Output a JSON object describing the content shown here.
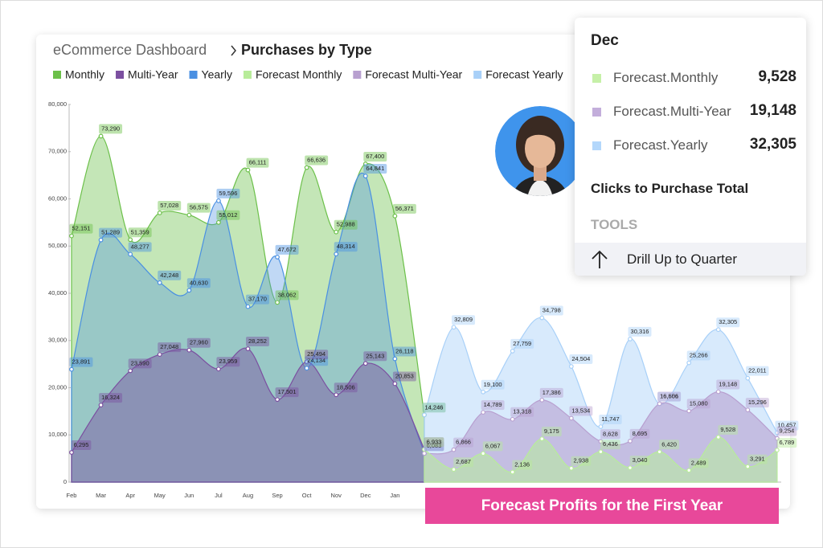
{
  "breadcrumb": {
    "parent": "eCommerce Dashboard",
    "current": "Purchases by Type"
  },
  "chart_data": {
    "type": "area",
    "categories": [
      "Feb",
      "Mar",
      "Apr",
      "May",
      "Jun",
      "Jul",
      "Aug",
      "Sep",
      "Oct",
      "Nov",
      "Dec",
      "Jan",
      null,
      null,
      null,
      null,
      null,
      null,
      null,
      null,
      null,
      null,
      null,
      null,
      null
    ],
    "ylim": [
      0,
      80000
    ],
    "yticks": [
      0,
      {
        "value": 10000,
        "label": "10,000"
      },
      {
        "value": 20000,
        "label": "20,000"
      },
      {
        "value": 30000,
        "label": "30,000"
      },
      {
        "value": 40000,
        "label": "40,000"
      },
      {
        "value": 50000,
        "label": "50,000"
      },
      {
        "value": 60000,
        "label": "60,000"
      },
      {
        "value": 70000,
        "label": "70,000"
      },
      {
        "value": 80000,
        "label": "80,000"
      }
    ],
    "series": [
      {
        "name": "Monthly",
        "color": "#6cc04a",
        "values": [
          52151,
          73290,
          51359,
          57028,
          56575,
          55012,
          66111,
          38062,
          66636,
          52988,
          67400,
          56371,
          14246,
          null,
          null,
          null,
          null,
          null,
          null,
          null,
          null,
          null,
          null,
          null,
          null
        ],
        "value_labels": [
          "52,151",
          "73,290",
          "51,359",
          "57,028",
          "56,575",
          "55,012",
          "66,111",
          "38,062",
          "66,636",
          "52,988",
          "67,400",
          "56,371",
          "14,246",
          null,
          null,
          null,
          null,
          null,
          null,
          null,
          null,
          null,
          null,
          null,
          null
        ]
      },
      {
        "name": "Multi-Year",
        "color": "#7b4fa0",
        "values": [
          6295,
          16324,
          23590,
          27048,
          27960,
          23959,
          28252,
          17501,
          25494,
          18506,
          25143,
          20853,
          6933,
          null,
          null,
          null,
          null,
          null,
          null,
          null,
          null,
          null,
          null,
          null,
          null
        ],
        "value_labels": [
          "6,295",
          "16,324",
          "23,590",
          "27,048",
          "27,960",
          "23,959",
          "28,252",
          "17,501",
          "25,494",
          "18,506",
          "25,143",
          "20,853",
          "6,933",
          null,
          null,
          null,
          null,
          null,
          null,
          null,
          null,
          null,
          null,
          null,
          null
        ]
      },
      {
        "name": "Yearly",
        "color": "#4a90e2",
        "values": [
          23891,
          51289,
          48277,
          42248,
          40630,
          59596,
          37170,
          47672,
          24134,
          48314,
          64841,
          26118,
          6083,
          null,
          null,
          null,
          null,
          null,
          null,
          null,
          null,
          null,
          null,
          null,
          null
        ],
        "value_labels": [
          "23,891",
          "51,289",
          "48,277",
          "42,248",
          "40,630",
          "59,596",
          "37,170",
          "47,672",
          "24,134",
          "48,314",
          "64,841",
          "26,118",
          "6,083",
          null,
          null,
          null,
          null,
          null,
          null,
          null,
          null,
          null,
          null,
          null,
          null
        ]
      },
      {
        "name": "Forecast Monthly",
        "color": "#b8ec9a",
        "values": [
          null,
          null,
          null,
          null,
          null,
          null,
          null,
          null,
          null,
          null,
          null,
          null,
          6933,
          2687,
          6067,
          2136,
          9175,
          2938,
          6436,
          3040,
          6420,
          2489,
          9528,
          3291,
          6789
        ],
        "value_labels": [
          null,
          null,
          null,
          null,
          null,
          null,
          null,
          null,
          null,
          null,
          null,
          null,
          "6,933",
          "2,687",
          "6,067",
          "2,136",
          "9,175",
          "2,938",
          "6,436",
          "3,040",
          "6,420",
          "2,489",
          "9,528",
          "3,291",
          "6,789"
        ]
      },
      {
        "name": "Forecast Multi-Year",
        "color": "#b8a0d0",
        "values": [
          null,
          null,
          null,
          null,
          null,
          null,
          null,
          null,
          null,
          null,
          null,
          null,
          6083,
          6866,
          14789,
          13318,
          17386,
          13534,
          8628,
          8695,
          16606,
          15080,
          19148,
          15296,
          9254
        ],
        "value_labels": [
          null,
          null,
          null,
          null,
          null,
          null,
          null,
          null,
          null,
          null,
          null,
          null,
          "6,083",
          "6,866",
          "14,789",
          "13,318",
          "17,386",
          "13,534",
          "8,628",
          "8,695",
          "16,606",
          "15,080",
          "19,148",
          "15,296",
          "9,254"
        ]
      },
      {
        "name": "Forecast Yearly",
        "color": "#a8d0f8",
        "values": [
          null,
          null,
          null,
          null,
          null,
          null,
          null,
          null,
          null,
          null,
          null,
          null,
          14246,
          32809,
          19100,
          27759,
          34798,
          24504,
          11747,
          30316,
          16551,
          25266,
          32305,
          22011,
          10457
        ],
        "value_labels": [
          null,
          null,
          null,
          null,
          null,
          null,
          null,
          null,
          null,
          null,
          null,
          null,
          "14,246",
          "32,809",
          "19,100",
          "27,759",
          "34,798",
          "24,504",
          "11,747",
          "30,316",
          "16,551",
          "25,266",
          "32,305",
          "22,011",
          "10,457"
        ]
      }
    ]
  },
  "tooltip": {
    "title": "Dec",
    "rows": [
      {
        "name": "Forecast.Monthly",
        "value": "9,528",
        "color": "#c6f0a8"
      },
      {
        "name": "Forecast.Multi-Year",
        "value": "19,148",
        "color": "#c3aedb"
      },
      {
        "name": "Forecast.Yearly",
        "value": "32,305",
        "color": "#b3d7fb"
      }
    ],
    "action": "Clicks to Purchase Total",
    "section": "TOOLS",
    "menu_item": "Drill Up to Quarter"
  },
  "banner": "Forecast Profits for the First Year"
}
